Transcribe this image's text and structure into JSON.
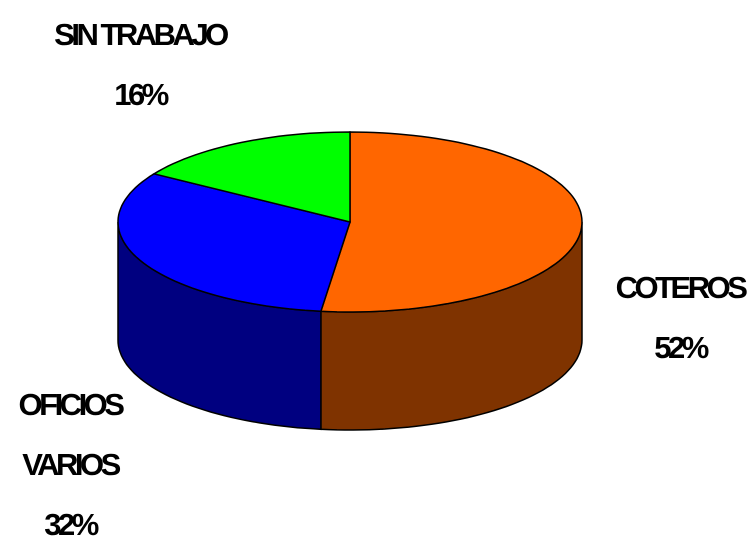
{
  "chart_data": {
    "type": "pie",
    "categories": [
      "COTEROS",
      "OFICIOS VARIOS",
      "SIN TRABAJO"
    ],
    "values": [
      52,
      32,
      16
    ],
    "value_labels": [
      "52%",
      "32%",
      "16%"
    ],
    "colors": [
      "#ff6600",
      "#0000ff",
      "#00ff00"
    ],
    "side_colors": [
      "#7f3300",
      "#000080",
      "#007f00"
    ]
  }
}
